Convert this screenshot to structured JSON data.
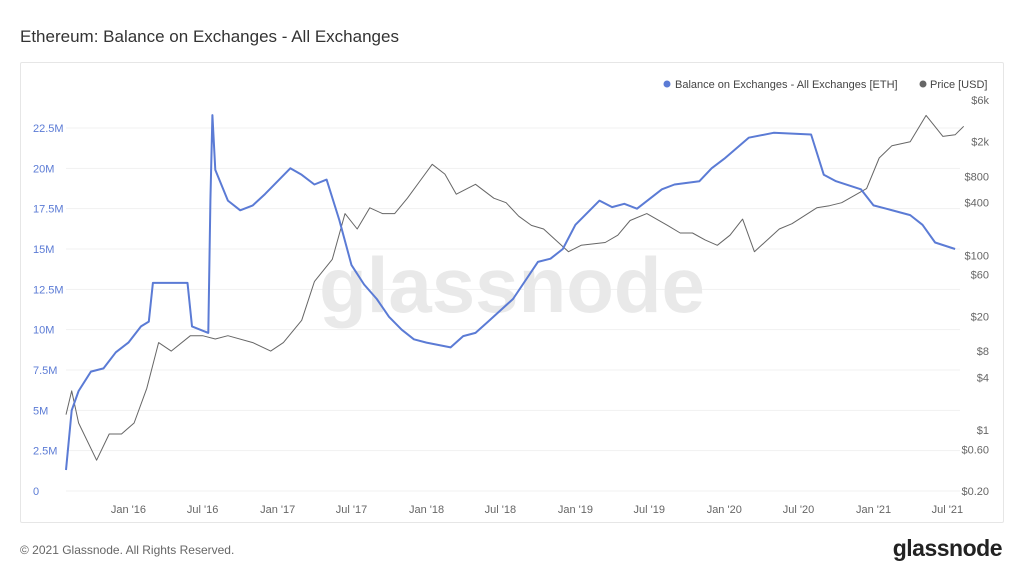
{
  "title": "Ethereum: Balance on Exchanges - All Exchanges",
  "footer": "© 2021 Glassnode. All Rights Reserved.",
  "logo": "glassnode",
  "watermark": "glassnode",
  "chart_data": {
    "type": "line",
    "title": "Ethereum: Balance on Exchanges - All Exchanges",
    "legend_placement": "top-right",
    "grid": true,
    "x_ticks": [
      "Jan '16",
      "Jul '16",
      "Jan '17",
      "Jul '17",
      "Jan '18",
      "Jul '18",
      "Jan '19",
      "Jul '19",
      "Jan '20",
      "Jul '20",
      "Jan '21",
      "Jul '21"
    ],
    "x_tick_dates": [
      "2016-01",
      "2016-07",
      "2017-01",
      "2017-07",
      "2018-01",
      "2018-07",
      "2019-01",
      "2019-07",
      "2020-01",
      "2020-07",
      "2021-01",
      "2021-07"
    ],
    "xlim": [
      "2015-08",
      "2021-08"
    ],
    "y_left": {
      "ticks": [
        "0",
        "2.5M",
        "5M",
        "7.5M",
        "10M",
        "12.5M",
        "15M",
        "17.5M",
        "20M",
        "22.5M"
      ],
      "tick_values": [
        0,
        2.5,
        5,
        7.5,
        10,
        12.5,
        15,
        17.5,
        20,
        22.5
      ],
      "unit": "M ETH",
      "range": [
        0,
        22.5
      ],
      "color": "#5b7bd5"
    },
    "y_right": {
      "scale": "log",
      "ticks": [
        "$0.20",
        "$0.60",
        "$1",
        "$4",
        "$8",
        "$20",
        "$60",
        "$100",
        "$400",
        "$800",
        "$2k",
        "$6k"
      ],
      "tick_values": [
        0.2,
        0.6,
        1,
        4,
        8,
        20,
        60,
        100,
        400,
        800,
        2000,
        6000
      ],
      "range": [
        0.2,
        6000
      ],
      "color": "#666666"
    },
    "series": [
      {
        "name": "Balance on Exchanges - All Exchanges [ETH]",
        "color": "#5b7bd5",
        "axis": "left",
        "unit": "M ETH",
        "points": [
          [
            "2015-08-01",
            1.3
          ],
          [
            "2015-08-15",
            5.0
          ],
          [
            "2015-09-01",
            6.2
          ],
          [
            "2015-10-01",
            7.4
          ],
          [
            "2015-11-01",
            7.6
          ],
          [
            "2015-12-01",
            8.6
          ],
          [
            "2016-01-01",
            9.2
          ],
          [
            "2016-02-01",
            10.2
          ],
          [
            "2016-02-20",
            10.5
          ],
          [
            "2016-03-01",
            12.9
          ],
          [
            "2016-05-25",
            12.9
          ],
          [
            "2016-06-05",
            10.2
          ],
          [
            "2016-07-15",
            9.8
          ],
          [
            "2016-07-20",
            18.0
          ],
          [
            "2016-07-25",
            23.3
          ],
          [
            "2016-08-01",
            19.9
          ],
          [
            "2016-09-01",
            18.0
          ],
          [
            "2016-10-01",
            17.4
          ],
          [
            "2016-11-01",
            17.7
          ],
          [
            "2016-12-01",
            18.4
          ],
          [
            "2017-02-01",
            20.0
          ],
          [
            "2017-03-01",
            19.6
          ],
          [
            "2017-04-01",
            19.0
          ],
          [
            "2017-05-01",
            19.3
          ],
          [
            "2017-06-01",
            16.8
          ],
          [
            "2017-07-01",
            14.0
          ],
          [
            "2017-08-01",
            12.8
          ],
          [
            "2017-09-01",
            11.9
          ],
          [
            "2017-10-01",
            10.8
          ],
          [
            "2017-11-01",
            10.0
          ],
          [
            "2017-12-01",
            9.4
          ],
          [
            "2018-01-01",
            9.2
          ],
          [
            "2018-03-01",
            8.9
          ],
          [
            "2018-04-01",
            9.6
          ],
          [
            "2018-05-01",
            9.8
          ],
          [
            "2018-06-01",
            10.5
          ],
          [
            "2018-08-01",
            11.9
          ],
          [
            "2018-10-01",
            14.2
          ],
          [
            "2018-11-01",
            14.4
          ],
          [
            "2018-12-01",
            15.0
          ],
          [
            "2019-01-01",
            16.5
          ],
          [
            "2019-03-01",
            18.0
          ],
          [
            "2019-04-01",
            17.6
          ],
          [
            "2019-05-01",
            17.8
          ],
          [
            "2019-06-01",
            17.5
          ],
          [
            "2019-08-01",
            18.7
          ],
          [
            "2019-09-01",
            19.0
          ],
          [
            "2019-11-01",
            19.2
          ],
          [
            "2019-12-01",
            20.0
          ],
          [
            "2020-01-01",
            20.6
          ],
          [
            "2020-03-01",
            21.9
          ],
          [
            "2020-05-01",
            22.2
          ],
          [
            "2020-08-01",
            22.1
          ],
          [
            "2020-09-01",
            19.6
          ],
          [
            "2020-10-01",
            19.2
          ],
          [
            "2020-12-01",
            18.7
          ],
          [
            "2021-01-01",
            17.7
          ],
          [
            "2021-02-01",
            17.5
          ],
          [
            "2021-04-01",
            17.1
          ],
          [
            "2021-05-01",
            16.5
          ],
          [
            "2021-06-01",
            15.4
          ],
          [
            "2021-07-20",
            15.0
          ]
        ]
      },
      {
        "name": "Price [USD]",
        "color": "#666666",
        "axis": "right",
        "unit": "USD",
        "points": [
          [
            "2015-08-01",
            1.5
          ],
          [
            "2015-08-15",
            2.8
          ],
          [
            "2015-09-01",
            1.2
          ],
          [
            "2015-10-15",
            0.45
          ],
          [
            "2015-11-15",
            0.9
          ],
          [
            "2015-12-15",
            0.9
          ],
          [
            "2016-01-15",
            1.2
          ],
          [
            "2016-02-15",
            3
          ],
          [
            "2016-03-15",
            10
          ],
          [
            "2016-04-15",
            8
          ],
          [
            "2016-06-01",
            12
          ],
          [
            "2016-07-01",
            12
          ],
          [
            "2016-08-01",
            11
          ],
          [
            "2016-09-01",
            12
          ],
          [
            "2016-11-01",
            10
          ],
          [
            "2016-12-15",
            8
          ],
          [
            "2017-01-15",
            10
          ],
          [
            "2017-03-01",
            18
          ],
          [
            "2017-04-01",
            50
          ],
          [
            "2017-05-15",
            90
          ],
          [
            "2017-06-15",
            300
          ],
          [
            "2017-07-15",
            200
          ],
          [
            "2017-08-15",
            350
          ],
          [
            "2017-09-15",
            300
          ],
          [
            "2017-10-15",
            300
          ],
          [
            "2017-11-15",
            450
          ],
          [
            "2017-12-15",
            700
          ],
          [
            "2018-01-15",
            1100
          ],
          [
            "2018-02-15",
            850
          ],
          [
            "2018-03-15",
            500
          ],
          [
            "2018-05-01",
            650
          ],
          [
            "2018-06-15",
            450
          ],
          [
            "2018-07-15",
            400
          ],
          [
            "2018-08-15",
            280
          ],
          [
            "2018-09-15",
            220
          ],
          [
            "2018-10-15",
            200
          ],
          [
            "2018-12-15",
            110
          ],
          [
            "2019-01-15",
            130
          ],
          [
            "2019-03-15",
            140
          ],
          [
            "2019-04-15",
            170
          ],
          [
            "2019-05-15",
            250
          ],
          [
            "2019-06-25",
            300
          ],
          [
            "2019-08-15",
            220
          ],
          [
            "2019-09-15",
            180
          ],
          [
            "2019-10-15",
            180
          ],
          [
            "2019-11-15",
            150
          ],
          [
            "2019-12-15",
            130
          ],
          [
            "2020-01-15",
            170
          ],
          [
            "2020-02-15",
            260
          ],
          [
            "2020-03-15",
            110
          ],
          [
            "2020-05-15",
            200
          ],
          [
            "2020-06-15",
            230
          ],
          [
            "2020-08-15",
            350
          ],
          [
            "2020-09-15",
            370
          ],
          [
            "2020-10-15",
            400
          ],
          [
            "2020-12-15",
            580
          ],
          [
            "2021-01-15",
            1300
          ],
          [
            "2021-02-15",
            1800
          ],
          [
            "2021-04-01",
            2000
          ],
          [
            "2021-05-10",
            4000
          ],
          [
            "2021-06-20",
            2300
          ],
          [
            "2021-07-20",
            2400
          ],
          [
            "2021-08-10",
            3000
          ]
        ]
      }
    ]
  }
}
